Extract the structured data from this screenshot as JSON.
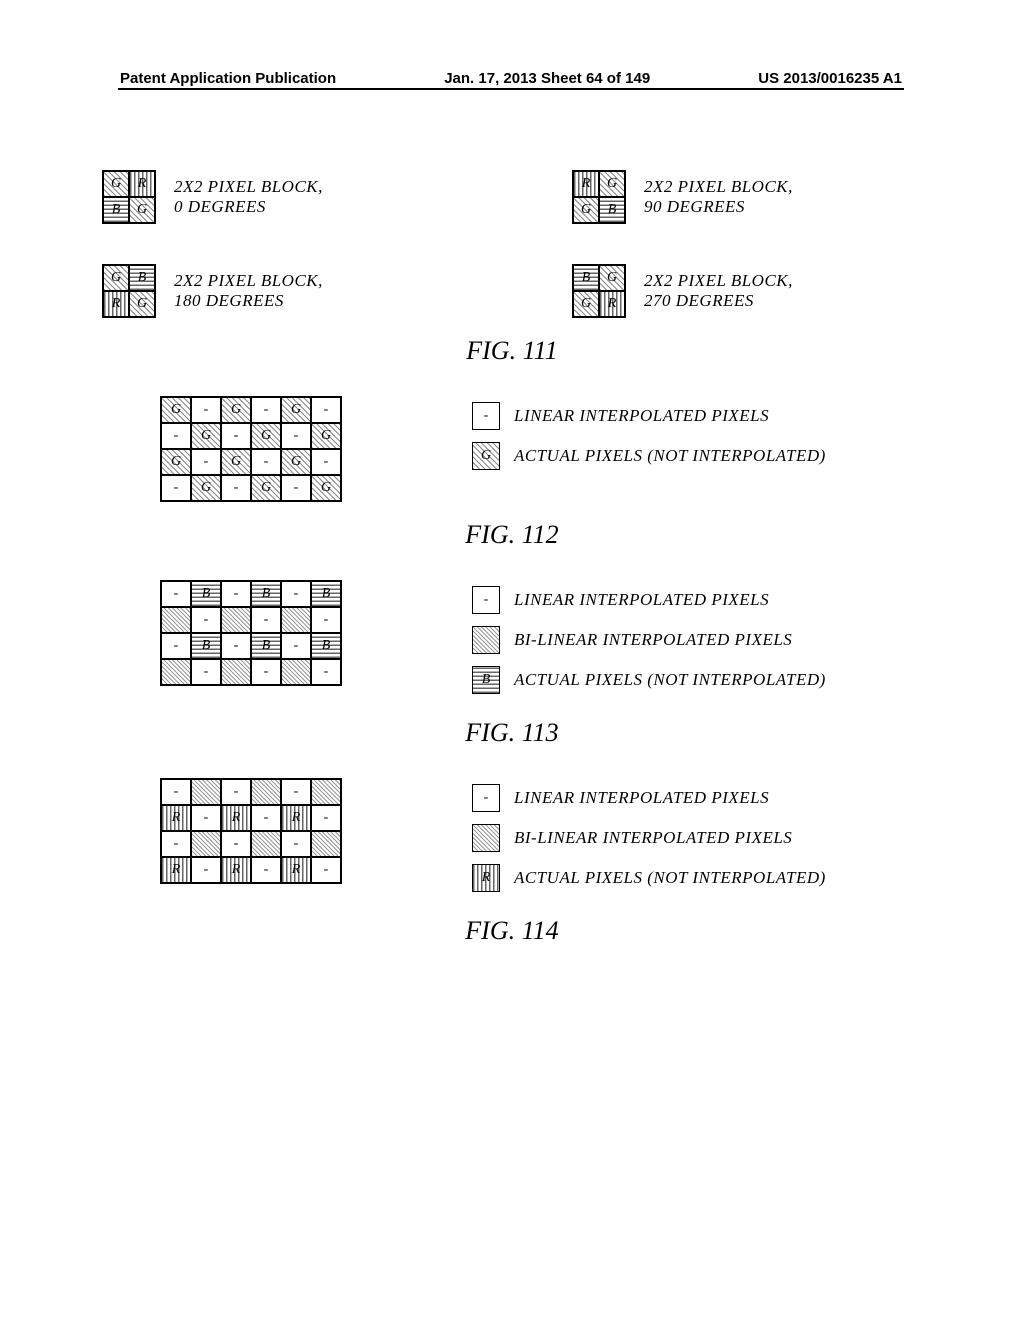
{
  "header": {
    "left": "Patent Application Publication",
    "center": "Jan. 17, 2013  Sheet 64 of 149",
    "right": "US 2013/0016235 A1"
  },
  "fig111": {
    "label": "FIG. 111",
    "blocks": [
      {
        "cells": [
          [
            "G",
            "hatch-diag"
          ],
          [
            "R",
            "hatch-vert"
          ],
          [
            "B",
            "hatch-horz"
          ],
          [
            "G",
            "hatch-diag"
          ]
        ],
        "line1": "2X2 PIXEL BLOCK,",
        "line2": "0 DEGREES"
      },
      {
        "cells": [
          [
            "R",
            "hatch-vert"
          ],
          [
            "G",
            "hatch-diag"
          ],
          [
            "G",
            "hatch-diag"
          ],
          [
            "B",
            "hatch-horz"
          ]
        ],
        "line1": "2X2 PIXEL BLOCK,",
        "line2": "90 DEGREES"
      },
      {
        "cells": [
          [
            "G",
            "hatch-diag"
          ],
          [
            "B",
            "hatch-horz"
          ],
          [
            "R",
            "hatch-vert"
          ],
          [
            "G",
            "hatch-diag"
          ]
        ],
        "line1": "2X2 PIXEL BLOCK,",
        "line2": "180 DEGREES"
      },
      {
        "cells": [
          [
            "B",
            "hatch-horz"
          ],
          [
            "G",
            "hatch-diag"
          ],
          [
            "G",
            "hatch-diag"
          ],
          [
            "R",
            "hatch-vert"
          ]
        ],
        "line1": "2X2 PIXEL BLOCK,",
        "line2": "270 DEGREES"
      }
    ]
  },
  "fig112": {
    "label": "FIG. 112",
    "gridCols": 6,
    "cells": [
      [
        "G",
        "hatch-diag"
      ],
      [
        "-",
        "plain"
      ],
      [
        "G",
        "hatch-diag"
      ],
      [
        "-",
        "plain"
      ],
      [
        "G",
        "hatch-diag"
      ],
      [
        "-",
        "plain"
      ],
      [
        "-",
        "plain"
      ],
      [
        "G",
        "hatch-diag"
      ],
      [
        "-",
        "plain"
      ],
      [
        "G",
        "hatch-diag"
      ],
      [
        "-",
        "plain"
      ],
      [
        "G",
        "hatch-diag"
      ],
      [
        "G",
        "hatch-diag"
      ],
      [
        "-",
        "plain"
      ],
      [
        "G",
        "hatch-diag"
      ],
      [
        "-",
        "plain"
      ],
      [
        "G",
        "hatch-diag"
      ],
      [
        "-",
        "plain"
      ],
      [
        "-",
        "plain"
      ],
      [
        "G",
        "hatch-diag"
      ],
      [
        "-",
        "plain"
      ],
      [
        "G",
        "hatch-diag"
      ],
      [
        "-",
        "plain"
      ],
      [
        "G",
        "hatch-diag"
      ]
    ],
    "legend": [
      {
        "txt": "-",
        "cls": "plain",
        "label": "LINEAR INTERPOLATED PIXELS"
      },
      {
        "txt": "G",
        "cls": "hatch-diag",
        "label": "ACTUAL PIXELS (NOT INTERPOLATED)"
      }
    ]
  },
  "fig113": {
    "label": "FIG. 113",
    "gridCols": 6,
    "cells": [
      [
        "-",
        "plain"
      ],
      [
        "B",
        "hatch-horz"
      ],
      [
        "-",
        "plain"
      ],
      [
        "B",
        "hatch-horz"
      ],
      [
        "-",
        "plain"
      ],
      [
        "B",
        "hatch-horz"
      ],
      [
        "",
        "hatch-dense"
      ],
      [
        "-",
        "plain"
      ],
      [
        "",
        "hatch-dense"
      ],
      [
        "-",
        "plain"
      ],
      [
        "",
        "hatch-dense"
      ],
      [
        "-",
        "plain"
      ],
      [
        "-",
        "plain"
      ],
      [
        "B",
        "hatch-horz"
      ],
      [
        "-",
        "plain"
      ],
      [
        "B",
        "hatch-horz"
      ],
      [
        "-",
        "plain"
      ],
      [
        "B",
        "hatch-horz"
      ],
      [
        "",
        "hatch-dense"
      ],
      [
        "-",
        "plain"
      ],
      [
        "",
        "hatch-dense"
      ],
      [
        "-",
        "plain"
      ],
      [
        "",
        "hatch-dense"
      ],
      [
        "-",
        "plain"
      ]
    ],
    "legend": [
      {
        "txt": "-",
        "cls": "plain",
        "label": "LINEAR INTERPOLATED PIXELS"
      },
      {
        "txt": "",
        "cls": "hatch-dense",
        "label": "BI-LINEAR INTERPOLATED PIXELS"
      },
      {
        "txt": "B",
        "cls": "hatch-horz",
        "label": "ACTUAL PIXELS (NOT INTERPOLATED)"
      }
    ]
  },
  "fig114": {
    "label": "FIG. 114",
    "gridCols": 6,
    "cells": [
      [
        "-",
        "plain"
      ],
      [
        "",
        "hatch-dense"
      ],
      [
        "-",
        "plain"
      ],
      [
        "",
        "hatch-dense"
      ],
      [
        "-",
        "plain"
      ],
      [
        "",
        "hatch-dense"
      ],
      [
        "R",
        "hatch-vert"
      ],
      [
        "-",
        "plain"
      ],
      [
        "R",
        "hatch-vert"
      ],
      [
        "-",
        "plain"
      ],
      [
        "R",
        "hatch-vert"
      ],
      [
        "-",
        "plain"
      ],
      [
        "-",
        "plain"
      ],
      [
        "",
        "hatch-dense"
      ],
      [
        "-",
        "plain"
      ],
      [
        "",
        "hatch-dense"
      ],
      [
        "-",
        "plain"
      ],
      [
        "",
        "hatch-dense"
      ],
      [
        "R",
        "hatch-vert"
      ],
      [
        "-",
        "plain"
      ],
      [
        "R",
        "hatch-vert"
      ],
      [
        "-",
        "plain"
      ],
      [
        "R",
        "hatch-vert"
      ],
      [
        "-",
        "plain"
      ]
    ],
    "legend": [
      {
        "txt": "-",
        "cls": "plain",
        "label": "LINEAR INTERPOLATED PIXELS"
      },
      {
        "txt": "",
        "cls": "hatch-dense",
        "label": "BI-LINEAR INTERPOLATED PIXELS"
      },
      {
        "txt": "R",
        "cls": "hatch-vert",
        "label": "ACTUAL PIXELS (NOT INTERPOLATED)"
      }
    ]
  }
}
